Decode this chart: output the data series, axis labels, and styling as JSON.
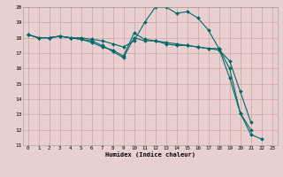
{
  "xlabel": "Humidex (Indice chaleur)",
  "background_color": "#e8d0d0",
  "plot_bg_color": "#e8d0d0",
  "grid_color": "#d4a0a0",
  "line_color": "#006868",
  "xlim": [
    -0.5,
    23.5
  ],
  "ylim": [
    11,
    20
  ],
  "xticks": [
    0,
    1,
    2,
    3,
    4,
    5,
    6,
    7,
    8,
    9,
    10,
    11,
    12,
    13,
    14,
    15,
    16,
    17,
    18,
    19,
    20,
    21,
    22,
    23
  ],
  "yticks": [
    11,
    12,
    13,
    14,
    15,
    16,
    17,
    18,
    19,
    20
  ],
  "series": [
    {
      "x": [
        0,
        1,
        2,
        3,
        4,
        5,
        6,
        7,
        8,
        9,
        10,
        11,
        12,
        13,
        14,
        15,
        16,
        17,
        18,
        19,
        20,
        21,
        22
      ],
      "y": [
        18.2,
        18.0,
        18.0,
        18.1,
        18.0,
        18.0,
        17.9,
        17.8,
        17.6,
        17.4,
        17.8,
        19.0,
        20.0,
        20.0,
        19.6,
        19.7,
        19.3,
        18.5,
        17.3,
        15.4,
        13.1,
        11.7,
        11.4
      ]
    },
    {
      "x": [
        0,
        1,
        2,
        3,
        4,
        5,
        6,
        7,
        8,
        9,
        10,
        11,
        12,
        13,
        14,
        15,
        16,
        17,
        18,
        19,
        20,
        21
      ],
      "y": [
        18.2,
        18.0,
        18.0,
        18.1,
        18.0,
        17.9,
        17.8,
        17.5,
        17.1,
        16.7,
        18.0,
        17.8,
        17.8,
        17.6,
        17.5,
        17.5,
        17.4,
        17.3,
        17.3,
        16.0,
        13.1,
        12.0
      ]
    },
    {
      "x": [
        0,
        1,
        2,
        3,
        4,
        5,
        6,
        7,
        8,
        9,
        10,
        11,
        12,
        13,
        14,
        15,
        16,
        17,
        18,
        19,
        20,
        21
      ],
      "y": [
        18.2,
        18.0,
        18.0,
        18.1,
        18.0,
        17.9,
        17.7,
        17.4,
        17.2,
        16.8,
        18.3,
        17.9,
        17.8,
        17.7,
        17.6,
        17.5,
        17.4,
        17.3,
        17.2,
        16.5,
        14.5,
        12.5
      ]
    }
  ]
}
